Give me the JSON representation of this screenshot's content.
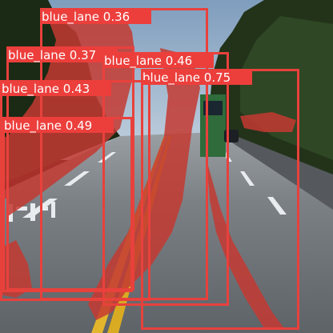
{
  "image": {
    "scene": "road-with-lane-masks",
    "colors": {
      "sky": "#9cb6cf",
      "foliage_dark": "#15200f",
      "foliage_mid": "#2a3b1f",
      "road": "#6d7277",
      "road_far": "#8a8f94",
      "lane_yellow": "#e2b52c",
      "lane_white": "#e9ecef",
      "mask": "#c43a32",
      "box": "#e8413c",
      "label_bg": "#ec3f3c",
      "label_text": "#ffffff"
    }
  },
  "detections": [
    {
      "class": "blue_lane",
      "score": "0.36",
      "label": "blue_lane 0.36"
    },
    {
      "class": "blue_lane",
      "score": "0.37",
      "label": "blue_lane 0.37"
    },
    {
      "class": "blue_lane",
      "score": "0.46",
      "label": "blue_lane 0.46"
    },
    {
      "class": "blue_lane",
      "score": "0.75",
      "label": "blue_lane 0.75"
    },
    {
      "class": "blue_lane",
      "score": "0.43",
      "label": "blue_lane 0.43"
    },
    {
      "class": "blue_lane",
      "score": "0.49",
      "label": "blue_lane 0.49"
    }
  ]
}
